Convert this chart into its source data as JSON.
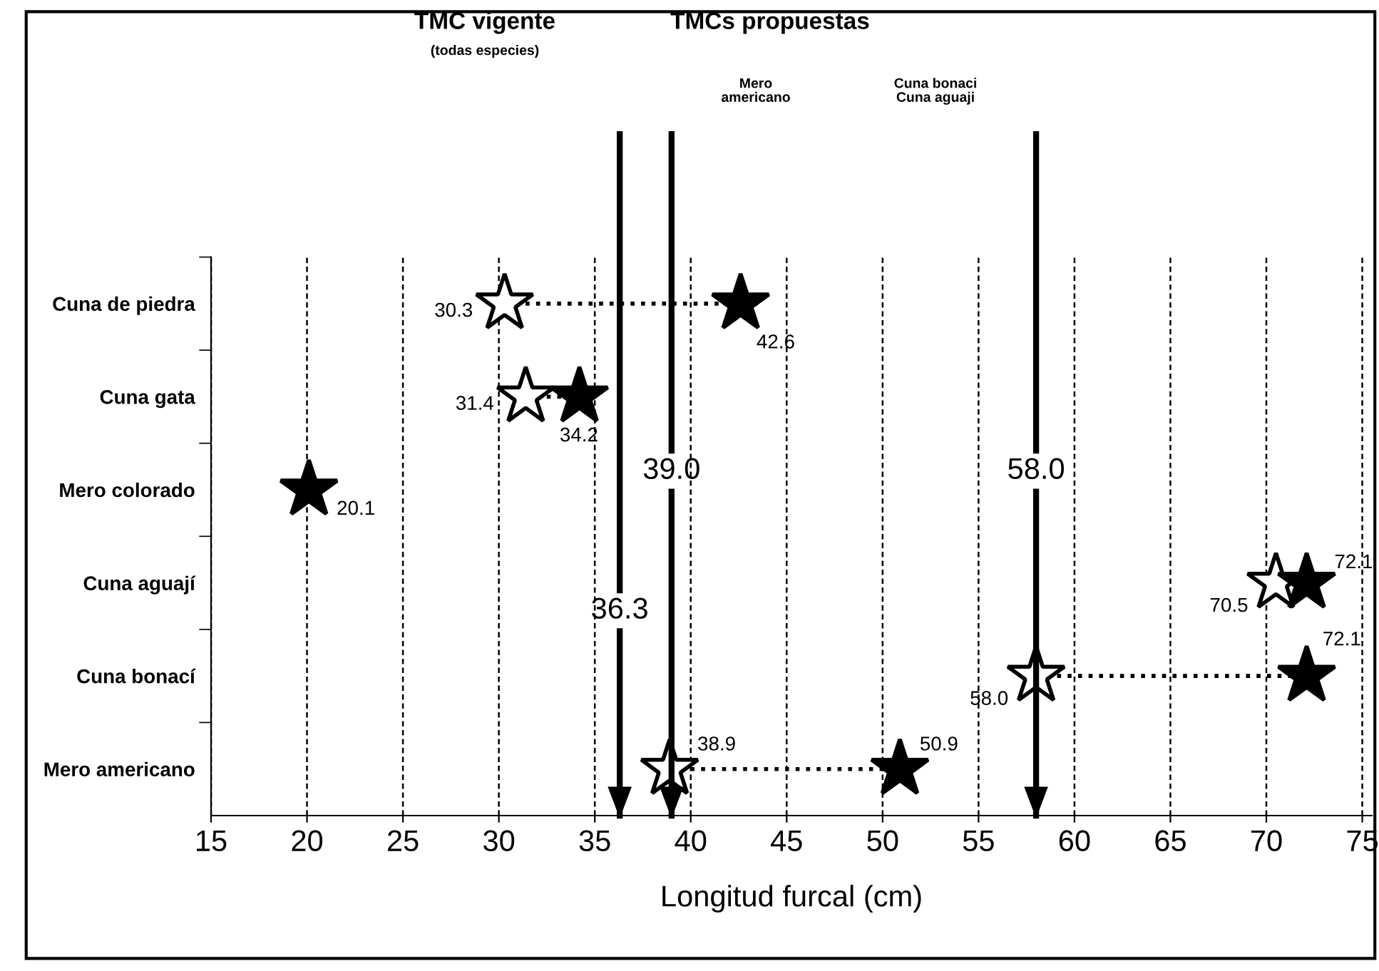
{
  "chart_data": {
    "type": "scatter",
    "orientation": "horizontal",
    "categories": [
      "Cuna de piedra",
      "Cuna gata",
      "Mero colorado",
      "Cuna aguají",
      "Cuna bonací",
      "Mero americano"
    ],
    "series": [
      {
        "color": "#ffffff",
        "values": [
          30.3,
          31.4,
          null,
          70.5,
          58.0,
          38.9
        ],
        "value_labels": [
          "30.3",
          "31.4",
          null,
          "70.5",
          "58.0",
          "38.9"
        ]
      },
      {
        "color": "#000000",
        "values": [
          42.6,
          34.2,
          20.1,
          72.1,
          72.1,
          50.9
        ],
        "value_labels": [
          "42.6",
          "34.2",
          "20.1",
          "72.1",
          "72.1",
          "50.9"
        ]
      }
    ],
    "xlabel": "Longitud furcal (cm)",
    "xlim": [
      15,
      75.5
    ],
    "xticks": [
      15,
      20,
      25,
      30,
      35,
      40,
      45,
      50,
      55,
      60,
      65,
      70,
      75
    ],
    "grid": "x",
    "marker": "star",
    "ref_lines": [
      {
        "axis": "x",
        "value": 36.3,
        "label": "36.3",
        "color": "#000000"
      },
      {
        "axis": "x",
        "value": 39.0,
        "label": "39.0",
        "color": "#000000"
      },
      {
        "axis": "x",
        "value": 58.0,
        "label": "58.0",
        "color": "#000000"
      }
    ],
    "annotations": [
      "TMC vigente",
      "(todas especies)",
      "TMCs propuestas",
      "Mero\namericano",
      "Cuna bonaci\nCuna aguaji"
    ]
  }
}
